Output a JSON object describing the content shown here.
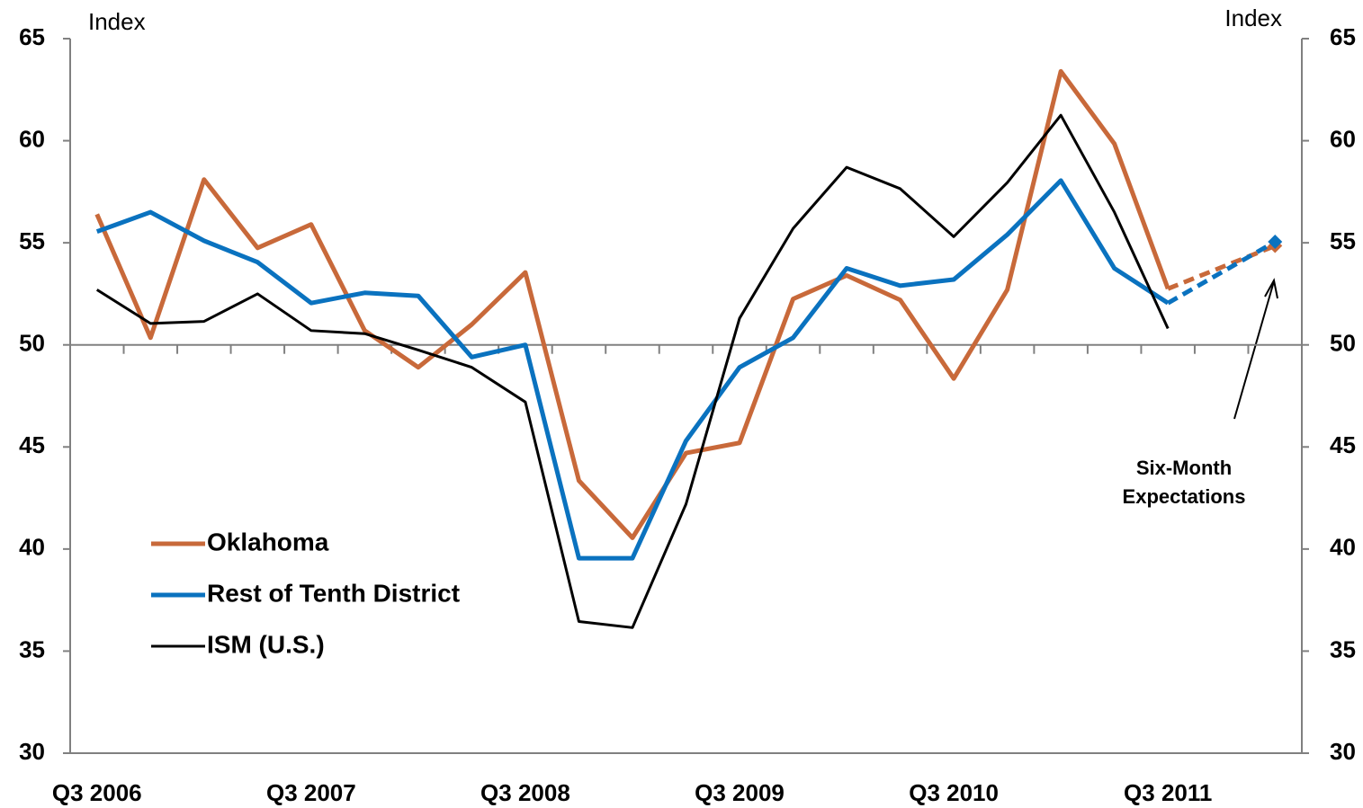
{
  "chart_data": {
    "type": "line",
    "y_label": "Index",
    "y2_label": "Index",
    "categories": [
      "Q3 2006",
      null,
      null,
      null,
      "Q3 2007",
      null,
      null,
      null,
      "Q3 2008",
      null,
      null,
      null,
      "Q3 2009",
      null,
      null,
      null,
      "Q3 2010",
      null,
      null,
      null,
      "Q3 2011",
      null,
      null
    ],
    "series": [
      {
        "name": "Oklahoma",
        "color": "#c8693a",
        "width": 5,
        "dashed_from": 20,
        "values": [
          56.4,
          50.35,
          58.1,
          54.75,
          55.9,
          50.7,
          48.9,
          51.0,
          53.55,
          43.35,
          40.55,
          44.7,
          45.2,
          52.25,
          53.4,
          52.2,
          48.35,
          52.7,
          63.4,
          59.85,
          52.75,
          null,
          54.85
        ]
      },
      {
        "name": "Rest of Tenth District",
        "color": "#0a72bf",
        "width": 5,
        "dashed_from": 20,
        "values": [
          55.55,
          56.5,
          55.1,
          54.05,
          52.05,
          52.55,
          52.4,
          49.4,
          50.0,
          39.55,
          39.55,
          45.3,
          48.9,
          50.35,
          53.75,
          52.9,
          53.2,
          55.4,
          58.05,
          53.75,
          52.05,
          null,
          55.05
        ]
      },
      {
        "name": "ISM (U.S.)",
        "color": "#000000",
        "width": 3,
        "values": [
          52.7,
          51.05,
          51.15,
          52.5,
          50.7,
          50.55,
          49.75,
          48.9,
          47.2,
          36.45,
          36.15,
          42.2,
          51.3,
          55.7,
          58.7,
          57.65,
          55.3,
          57.95,
          61.25,
          56.5,
          50.8,
          null,
          null
        ]
      }
    ],
    "ylim": [
      30,
      65
    ],
    "yticks": [
      30,
      35,
      40,
      45,
      50,
      55,
      60,
      65
    ],
    "y2lim": [
      30,
      65
    ],
    "y2ticks": [
      30,
      35,
      40,
      45,
      50,
      55,
      60,
      65
    ],
    "baseline": 50,
    "grid": false,
    "legend": "lower left",
    "annotation": [
      "Six-Month",
      "Expectations"
    ]
  }
}
